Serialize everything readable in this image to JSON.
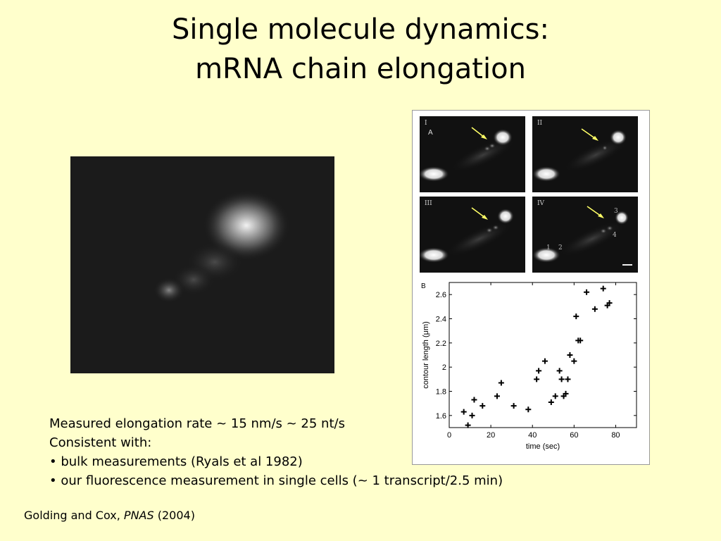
{
  "slide": {
    "title_line1": "Single molecule dynamics:",
    "title_line2": "mRNA chain elongation"
  },
  "figure": {
    "panel_labels": [
      "I",
      "II",
      "III",
      "IV"
    ],
    "panel_a_label": "A",
    "panel_b_label": "B",
    "spot_numbers": [
      "1",
      "2",
      "3",
      "4"
    ],
    "arrow_color": "#ffff66"
  },
  "chart_data": {
    "type": "scatter",
    "title": "",
    "xlabel": "time (sec)",
    "ylabel": "contour length (μm)",
    "xlim": [
      0,
      90
    ],
    "ylim": [
      1.5,
      2.7
    ],
    "xticks": [
      0,
      20,
      40,
      60,
      80
    ],
    "xtick_labels": [
      "0",
      "20",
      "40",
      "60",
      "80"
    ],
    "yticks": [
      1.6,
      1.8,
      2.0,
      2.2,
      2.4,
      2.6
    ],
    "ytick_labels": [
      "1.6",
      "1.8",
      "2",
      "2.2",
      "2.4",
      "2.6"
    ],
    "marker": "plus",
    "grid": false,
    "x": [
      7,
      9,
      11,
      12,
      16,
      23,
      25,
      31,
      38,
      42,
      43,
      46,
      49,
      51,
      53,
      54,
      55,
      56,
      57,
      58,
      60,
      61,
      62,
      63,
      66,
      70,
      74,
      76,
      77
    ],
    "y": [
      1.63,
      1.52,
      1.6,
      1.73,
      1.68,
      1.76,
      1.87,
      1.68,
      1.65,
      1.9,
      1.97,
      2.05,
      1.71,
      1.76,
      1.97,
      1.9,
      1.76,
      1.78,
      1.9,
      2.1,
      2.05,
      2.42,
      2.22,
      2.22,
      2.62,
      2.48,
      2.65,
      2.51,
      2.53
    ]
  },
  "text": {
    "line1": "Measured elongation rate ~ 15 nm/s ~ 25 nt/s",
    "line2": "Consistent with:",
    "bullet1": "• bulk measurements (Ryals et al 1982)",
    "bullet2": "• our fluorescence measurement in single cells (~ 1 transcript/2.5 min)"
  },
  "citation": {
    "authors": "Golding and Cox, ",
    "journal": "PNAS",
    "year": " (2004)"
  }
}
